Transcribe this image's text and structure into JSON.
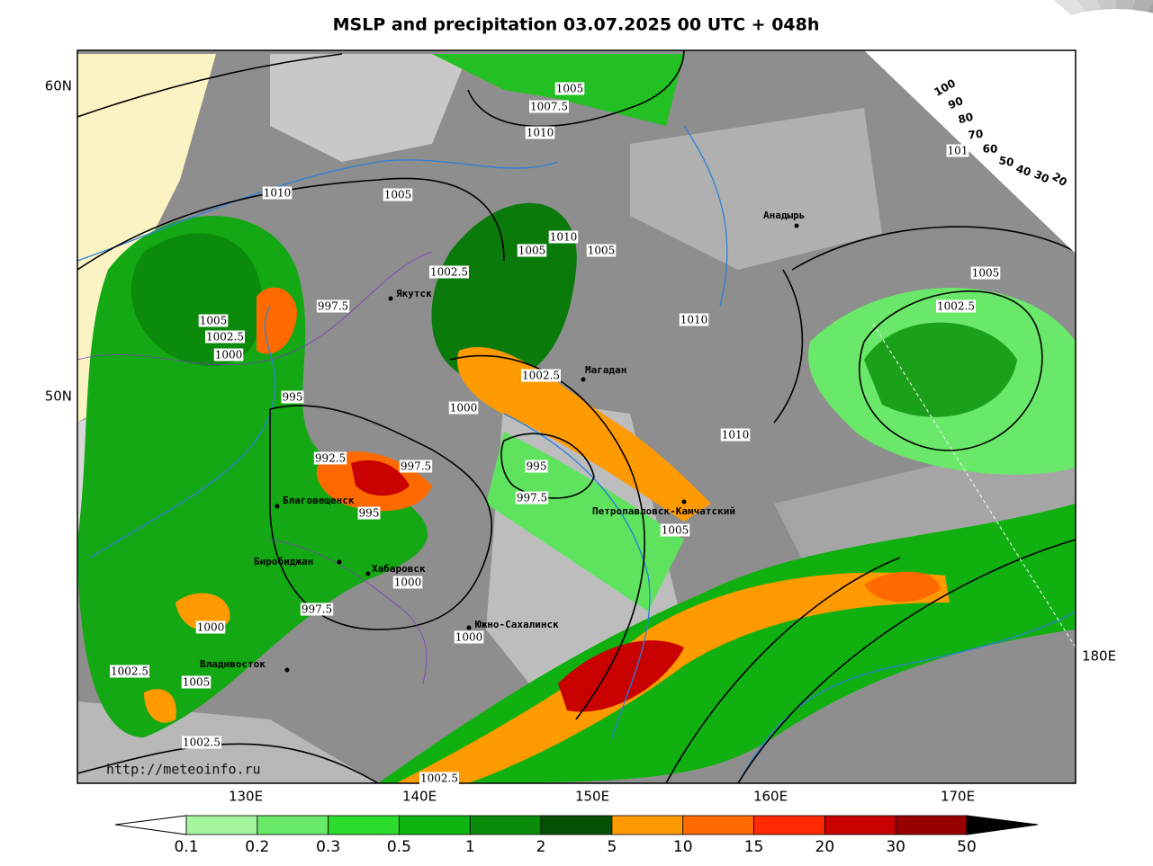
{
  "title": "MSLP and precipitation 03.07.2025 00 UTC + 048h",
  "watermark": "http://meteoinfo.ru",
  "lat_labels": [
    "60N",
    "50N"
  ],
  "lon_labels": [
    "130E",
    "140E",
    "150E",
    "160E",
    "170E",
    "180E"
  ],
  "colorbar": {
    "levels": [
      0.1,
      0.2,
      0.3,
      0.5,
      1,
      2,
      5,
      10,
      15,
      20,
      30,
      50
    ],
    "colors": [
      "#a5f5a0",
      "#6ae86a",
      "#2cdc2c",
      "#10b410",
      "#0a8c0a",
      "#055005",
      "#ff9a00",
      "#ff6a00",
      "#ff2a00",
      "#c80000",
      "#960000"
    ]
  },
  "cloud_scale": [
    100,
    90,
    80,
    70,
    60,
    50,
    40,
    30,
    20
  ],
  "cities": [
    "Анадырь",
    "Якутск",
    "Магадан",
    "Благовещенск",
    "Петропавловск-Камчатский",
    "Биробиджан",
    "Хабаровск",
    "Южно-Сахалинск",
    "Владивосток"
  ],
  "isobar_labels": [
    1005,
    1007.5,
    1010,
    1010,
    1005,
    1010,
    1005,
    1005,
    1002.5,
    997.5,
    1005,
    1002.5,
    1000,
    1002.5,
    995,
    1000,
    1010,
    992.5,
    997.5,
    995,
    997.5,
    995,
    1005,
    1000,
    997.5,
    1000,
    1000,
    1002.5,
    1005,
    1002.5,
    1002.5,
    1005,
    1002.5,
    1010,
    101
  ]
}
